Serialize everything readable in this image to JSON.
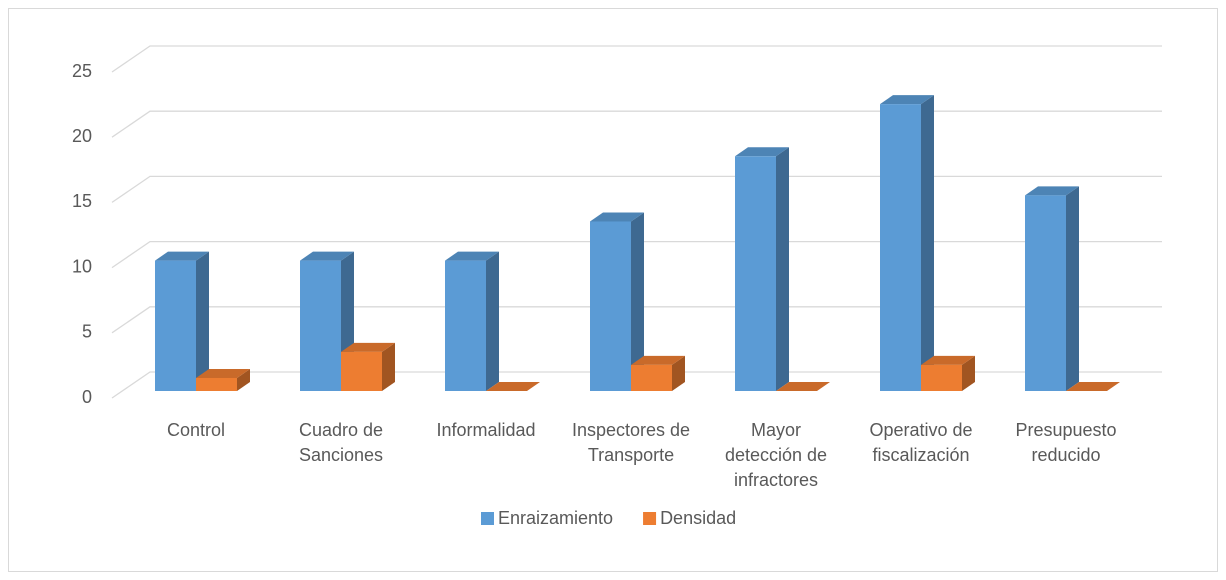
{
  "chart_data": {
    "type": "bar3d",
    "categories": [
      "Control",
      "Cuadro de Sanciones",
      "Informalidad",
      "Inspectores de Transporte",
      "Mayor detección de infractores",
      "Operativo de fiscalización",
      "Presupuesto reducido"
    ],
    "series": [
      {
        "name": "Enraizamiento",
        "color": "#5b9bd5",
        "values": [
          10,
          10,
          10,
          13,
          18,
          22,
          15
        ]
      },
      {
        "name": "Densidad",
        "color": "#ed7d31",
        "values": [
          1,
          3,
          0,
          2,
          0,
          2,
          0
        ]
      }
    ],
    "ylim": [
      0,
      25
    ],
    "yticks": [
      0,
      5,
      10,
      15,
      20,
      25
    ],
    "grid": true,
    "legend": "bottom"
  }
}
